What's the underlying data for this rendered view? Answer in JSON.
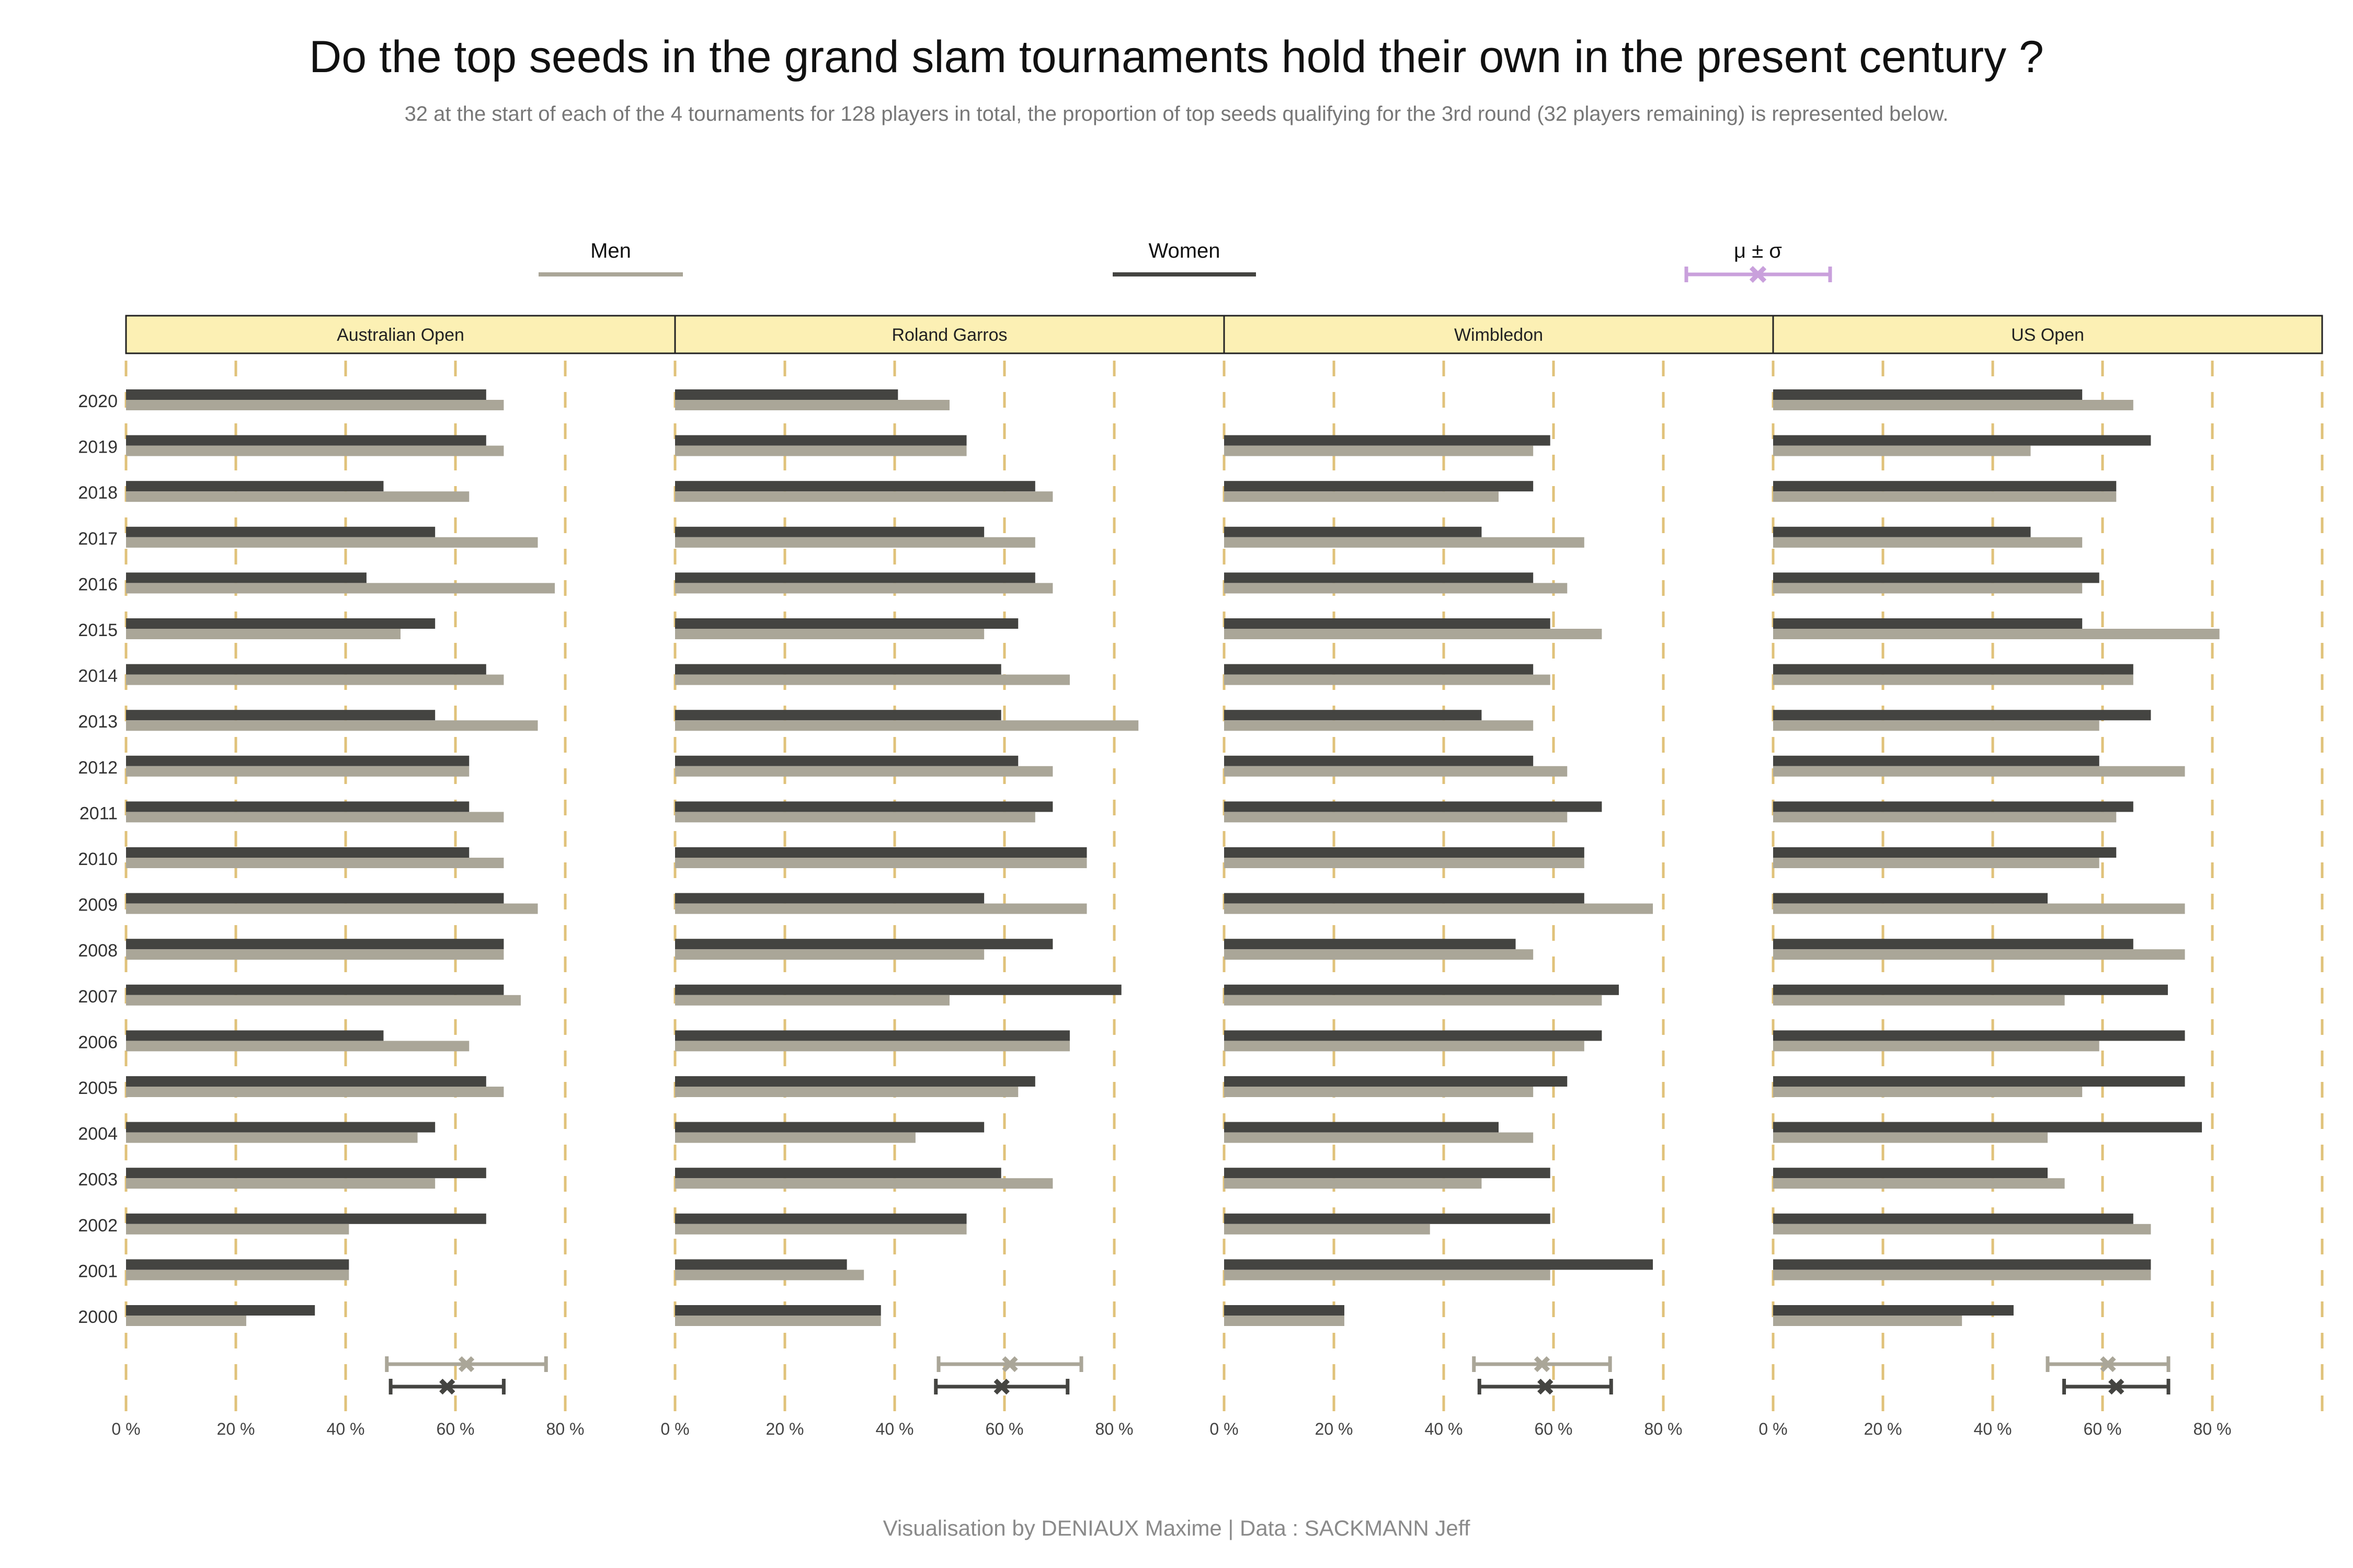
{
  "title": "Do the top seeds in the grand slam tournaments hold their own in the present century ?",
  "subtitle": "32 at the start of each of the 4 tournaments for 128 players in total, the proportion of top seeds qualifying for the 3rd round (32 players remaining) is represented below.",
  "caption": "Visualisation by DENIAUX Maxime | Data : SACKMANN Jeff",
  "legend": {
    "men": "Men",
    "women": "Women",
    "stat": "μ ± σ"
  },
  "colors": {
    "men": "#aaa698",
    "women": "#444441",
    "stat": "#c9a0dc",
    "grid": "#e0c27a",
    "strip_fill": "#fcf0b4",
    "strip_border": "#222222"
  },
  "chart_data": {
    "type": "bar",
    "orientation": "horizontal",
    "unit": "%",
    "xlim": [
      0,
      100
    ],
    "xticks": [
      "0 %",
      "20 %",
      "40 %",
      "60 %",
      "80 %"
    ],
    "xtick_values": [
      0,
      20,
      40,
      60,
      80
    ],
    "years": [
      "2020",
      "2019",
      "2018",
      "2017",
      "2016",
      "2015",
      "2014",
      "2013",
      "2012",
      "2011",
      "2010",
      "2009",
      "2008",
      "2007",
      "2006",
      "2005",
      "2004",
      "2003",
      "2002",
      "2001",
      "2000"
    ],
    "panels": [
      {
        "name": "Australian Open",
        "series": [
          {
            "name": "Women",
            "values": [
              65.6,
              65.6,
              46.9,
              56.3,
              43.8,
              56.3,
              65.6,
              56.3,
              62.5,
              62.5,
              62.5,
              68.8,
              68.8,
              68.8,
              46.9,
              65.6,
              56.3,
              65.6,
              65.6,
              40.6,
              34.4
            ]
          },
          {
            "name": "Men",
            "values": [
              68.8,
              68.8,
              62.5,
              75.0,
              78.1,
              50.0,
              68.8,
              75.0,
              62.5,
              68.8,
              68.8,
              75.0,
              68.8,
              71.9,
              62.5,
              68.8,
              53.1,
              56.3,
              40.6,
              40.6,
              21.9
            ]
          }
        ],
        "stats": {
          "men": {
            "mean": 62.0,
            "sd": 14.5
          },
          "women": {
            "mean": 58.5,
            "sd": 10.3
          }
        }
      },
      {
        "name": "Roland Garros",
        "series": [
          {
            "name": "Women",
            "values": [
              40.6,
              53.1,
              65.6,
              56.3,
              65.6,
              62.5,
              59.4,
              59.4,
              62.5,
              68.8,
              75.0,
              56.3,
              68.8,
              81.3,
              71.9,
              65.6,
              56.3,
              59.4,
              53.1,
              31.3,
              37.5
            ]
          },
          {
            "name": "Men",
            "values": [
              50.0,
              53.1,
              68.8,
              65.6,
              68.8,
              56.3,
              71.9,
              84.4,
              68.8,
              65.6,
              75.0,
              75.0,
              56.3,
              50.0,
              71.9,
              62.5,
              43.8,
              68.8,
              53.1,
              34.4,
              37.5
            ]
          }
        ],
        "stats": {
          "men": {
            "mean": 61.0,
            "sd": 13.0
          },
          "women": {
            "mean": 59.5,
            "sd": 12.0
          }
        }
      },
      {
        "name": "Wimbledon",
        "series": [
          {
            "name": "Women",
            "values": [
              null,
              59.4,
              56.3,
              46.9,
              56.3,
              59.4,
              56.3,
              46.9,
              56.3,
              68.8,
              65.6,
              65.6,
              53.1,
              71.9,
              68.8,
              62.5,
              50.0,
              59.4,
              59.4,
              78.1,
              21.9
            ]
          },
          {
            "name": "Men",
            "values": [
              null,
              56.3,
              50.0,
              65.6,
              62.5,
              68.8,
              59.4,
              56.3,
              62.5,
              62.5,
              65.6,
              78.1,
              56.3,
              68.8,
              65.6,
              56.3,
              56.3,
              46.9,
              37.5,
              59.4,
              21.9
            ]
          }
        ],
        "stats": {
          "men": {
            "mean": 57.9,
            "sd": 12.4
          },
          "women": {
            "mean": 58.5,
            "sd": 12.0
          }
        }
      },
      {
        "name": "US Open",
        "series": [
          {
            "name": "Women",
            "values": [
              56.3,
              68.8,
              62.5,
              46.9,
              59.4,
              56.3,
              65.6,
              68.8,
              59.4,
              65.6,
              62.5,
              50.0,
              65.6,
              71.9,
              75.0,
              75.0,
              78.1,
              50.0,
              65.6,
              68.8,
              43.8
            ]
          },
          {
            "name": "Men",
            "values": [
              65.6,
              46.9,
              62.5,
              56.3,
              56.3,
              81.3,
              65.6,
              59.4,
              75.0,
              62.5,
              59.4,
              75.0,
              75.0,
              53.1,
              59.4,
              56.3,
              50.0,
              53.1,
              68.8,
              68.8,
              34.4
            ]
          }
        ],
        "stats": {
          "men": {
            "mean": 61.0,
            "sd": 11.0
          },
          "women": {
            "mean": 62.5,
            "sd": 9.5
          }
        }
      }
    ]
  }
}
